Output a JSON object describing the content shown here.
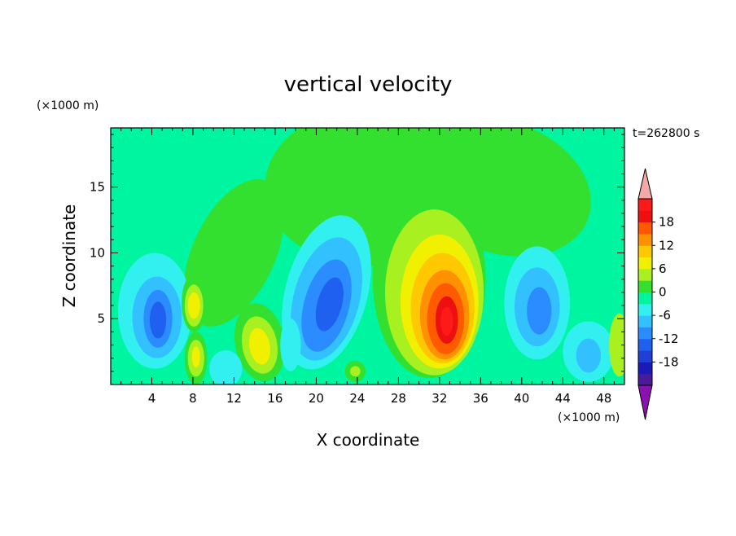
{
  "chart_data": {
    "type": "heatmap",
    "title": "vertical velocity",
    "time_label": "t=262800 s",
    "xlabel": "X coordinate",
    "ylabel": "Z coordinate",
    "x_unit": "(×1000 m)",
    "y_unit": "(×1000 m)",
    "xlim": [
      0,
      50
    ],
    "ylim": [
      0,
      19.5
    ],
    "x_ticks": [
      4,
      8,
      12,
      16,
      20,
      24,
      28,
      32,
      36,
      40,
      44,
      48
    ],
    "y_ticks": [
      5,
      10,
      15
    ],
    "colorbar": {
      "ticks": [
        -18,
        -12,
        -6,
        0,
        6,
        12,
        18
      ],
      "levels": [
        -21,
        -18,
        -15,
        -12,
        -9,
        -6,
        -3,
        0,
        3,
        6,
        9,
        12,
        15,
        18,
        21
      ],
      "colors": [
        "#4a1a9a",
        "#1a1ab8",
        "#1f3fd6",
        "#2060f0",
        "#2a8cff",
        "#33c0ff",
        "#33f0f0",
        "#00f5a0",
        "#33e030",
        "#a8f020",
        "#f0f000",
        "#ffc800",
        "#ff9000",
        "#ff5a00",
        "#ee1010",
        "#ff1a1a"
      ],
      "overflow_high": "#f4a8a8",
      "overflow_low": "#8a10b0"
    },
    "features": [
      {
        "x": 32.5,
        "z": 5.0,
        "w_max": 20
      },
      {
        "x": 4.5,
        "z": 5.0,
        "w_min": -12
      },
      {
        "x": 21.0,
        "z": 6.0,
        "w_min": -12
      },
      {
        "x": 41.5,
        "z": 5.5,
        "w_min": -10
      },
      {
        "x": 8.0,
        "z": 6.0,
        "w_max": 9
      },
      {
        "x": 8.0,
        "z": 2.0,
        "w_max": 8
      },
      {
        "x": 14.5,
        "z": 3.0,
        "w_max": 8
      }
    ]
  }
}
